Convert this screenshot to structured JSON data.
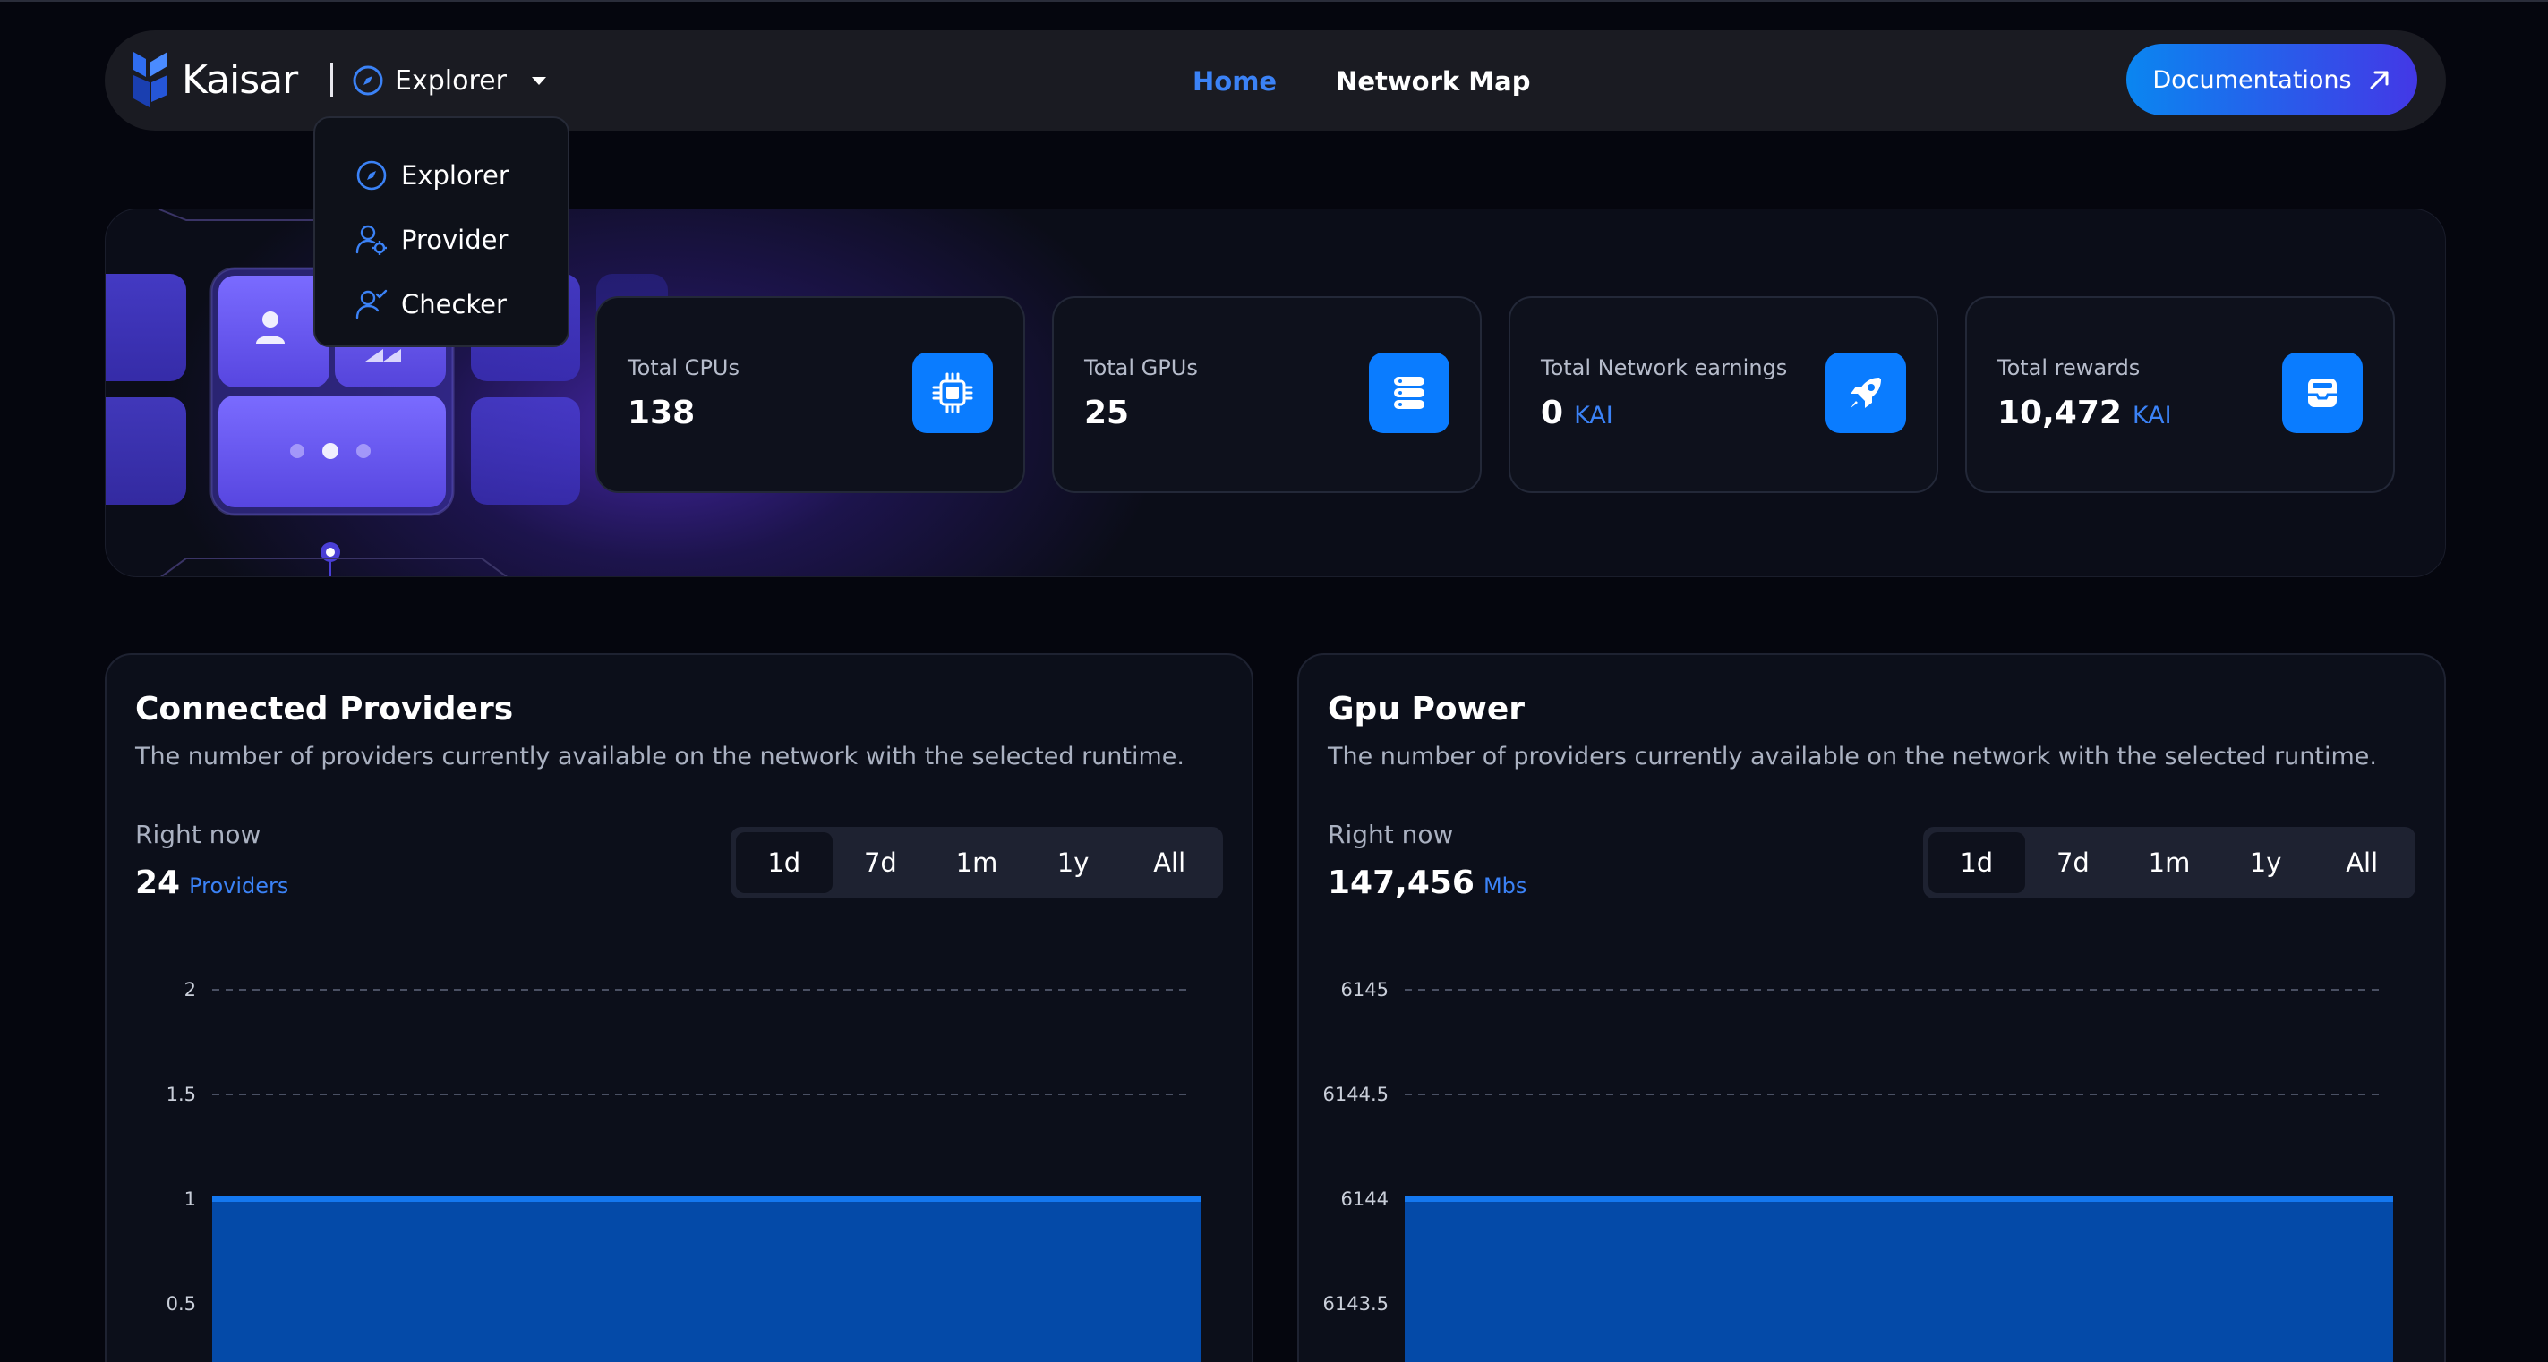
{
  "brand": {
    "name": "Kaisar"
  },
  "navbar": {
    "section_selector": {
      "label": "Explorer",
      "icon": "compass-icon"
    },
    "links": [
      {
        "label": "Home",
        "active": true
      },
      {
        "label": "Network Map",
        "active": false
      }
    ],
    "doc_button": {
      "label": "Documentations",
      "icon": "arrow-up-right-icon"
    }
  },
  "dropdown": {
    "items": [
      {
        "label": "Explorer",
        "icon": "compass-icon"
      },
      {
        "label": "Provider",
        "icon": "user-gear-icon"
      },
      {
        "label": "Checker",
        "icon": "user-check-icon"
      }
    ]
  },
  "stats": [
    {
      "title": "Total CPUs",
      "value": "138",
      "unit": "",
      "icon": "cpu-icon"
    },
    {
      "title": "Total GPUs",
      "value": "25",
      "unit": "",
      "icon": "server-stack-icon"
    },
    {
      "title": "Total Network earnings",
      "value": "0",
      "unit": "KAI",
      "icon": "rocket-icon"
    },
    {
      "title": "Total rewards",
      "value": "10,472",
      "unit": "KAI",
      "icon": "inbox-tray-icon"
    }
  ],
  "panels": [
    {
      "title": "Connected Providers",
      "description": "The number of providers currently available on the network with the selected runtime.",
      "right_now_label": "Right now",
      "right_now_value": "24",
      "right_now_unit": "Providers",
      "ranges": [
        "1d",
        "7d",
        "1m",
        "1y",
        "All"
      ],
      "active_range": "1d"
    },
    {
      "title": "Gpu Power",
      "description": "The number of providers currently available on the network with the selected runtime.",
      "right_now_label": "Right now",
      "right_now_value": "147,456",
      "right_now_unit": "Mbs",
      "ranges": [
        "1d",
        "7d",
        "1m",
        "1y",
        "All"
      ],
      "active_range": "1d"
    }
  ],
  "colors": {
    "accent": "#3b82f6",
    "icon_bg": "#0a7cff",
    "area_fill": "#044aa8",
    "area_line": "#1478f0"
  },
  "chart_data": [
    {
      "type": "area",
      "yticks": [
        "2",
        "1.5",
        "1",
        "0.5"
      ],
      "ylim": [
        0,
        2
      ],
      "x": [
        0,
        1
      ],
      "values": [
        1,
        1
      ],
      "grid": true
    },
    {
      "type": "area",
      "yticks": [
        "6145",
        "6144.5",
        "6144",
        "6143.5"
      ],
      "ylim": [
        6143,
        6145
      ],
      "x": [
        0,
        1
      ],
      "values": [
        6144,
        6144
      ],
      "grid": true
    }
  ]
}
